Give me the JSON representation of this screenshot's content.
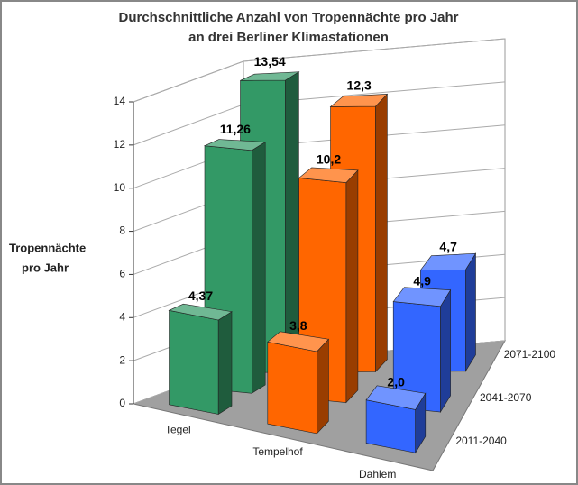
{
  "chart_data": {
    "type": "bar3d",
    "title": [
      "Durchschnittliche Anzahl von Tropennächte pro Jahr",
      "an drei Berliner Klimastationen"
    ],
    "y_label": [
      "Tropennächte",
      "pro Jahr"
    ],
    "categories": [
      "Tegel",
      "Tempelhof",
      "Dahlem"
    ],
    "colors": [
      "#339966",
      "#ff6600",
      "#3366ff"
    ],
    "series": [
      {
        "name": "2011-2040",
        "values": [
          4.37,
          3.8,
          2.0
        ],
        "value_labels": [
          "4,37",
          "3,8",
          "2,0"
        ]
      },
      {
        "name": "2041-2070",
        "values": [
          11.26,
          10.2,
          4.9
        ],
        "value_labels": [
          "11,26",
          "10,2",
          "4,9"
        ]
      },
      {
        "name": "2071-2100",
        "values": [
          13.54,
          12.3,
          4.7
        ],
        "value_labels": [
          "13,54",
          "12,3",
          "4,7"
        ]
      }
    ],
    "ylim": [
      0,
      14
    ],
    "yticks": [
      0,
      2,
      4,
      6,
      8,
      10,
      12,
      14
    ],
    "grid": true
  }
}
